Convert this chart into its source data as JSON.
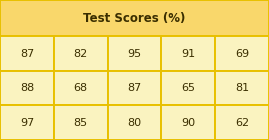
{
  "title": "Test Scores (%)",
  "table_data": [
    [
      87,
      82,
      95,
      91,
      69
    ],
    [
      88,
      68,
      87,
      65,
      81
    ],
    [
      97,
      85,
      80,
      90,
      62
    ]
  ],
  "header_bg": "#F9D76B",
  "cell_bg": "#FAF3C0",
  "border_color": "#E8C000",
  "text_color": "#3A2E00",
  "title_fontsize": 8.5,
  "cell_fontsize": 8.0,
  "fig_bg": "#FAF3C0"
}
